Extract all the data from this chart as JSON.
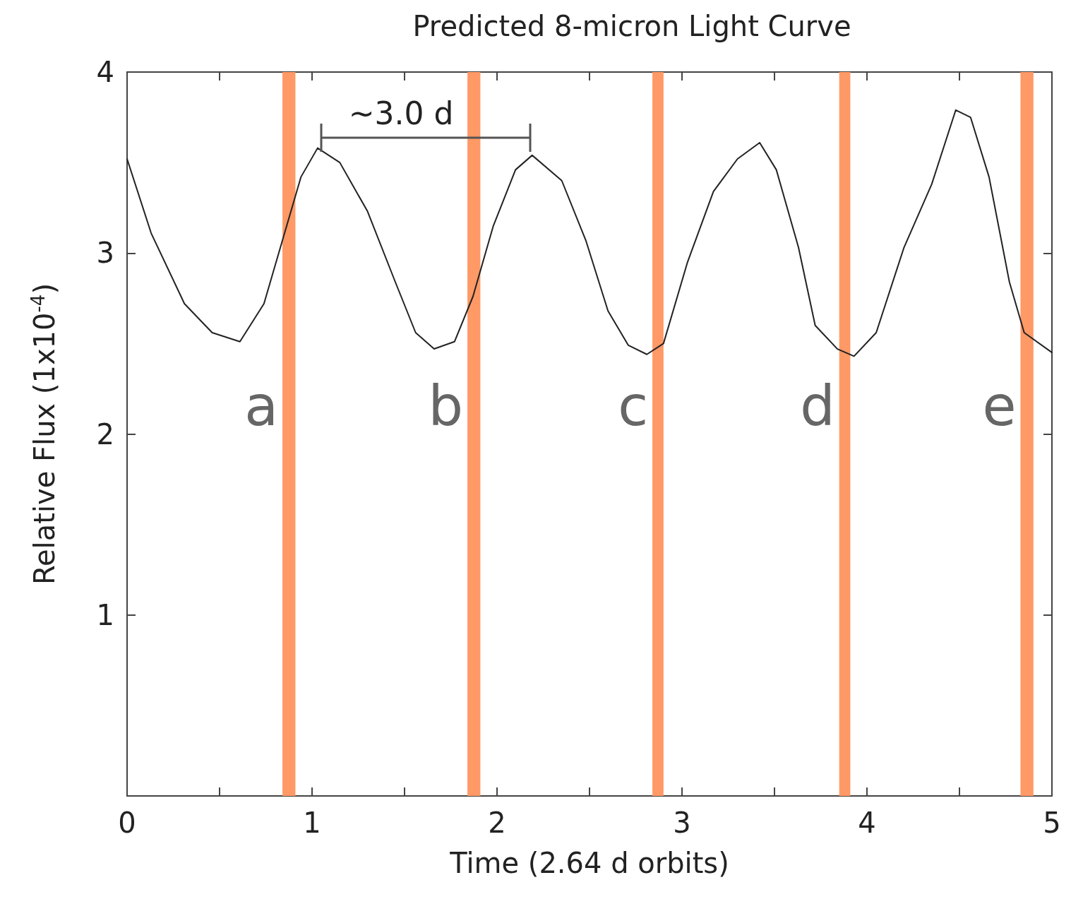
{
  "chart_data": {
    "type": "line",
    "title": "Predicted 8-micron Light Curve",
    "xlabel": "Time (2.64 d orbits)",
    "ylabel": "Relative Flux (1x10$^{-4}$)",
    "x": [
      0,
      0.13,
      0.31,
      0.46,
      0.61,
      0.74,
      0.84,
      0.94,
      1.03,
      1.15,
      1.3,
      1.45,
      1.56,
      1.66,
      1.77,
      1.87,
      1.98,
      2.1,
      2.19,
      2.35,
      2.48,
      2.6,
      2.71,
      2.81,
      2.9,
      3.03,
      3.17,
      3.3,
      3.42,
      3.51,
      3.63,
      3.72,
      3.84,
      3.93,
      4.05,
      4.2,
      4.35,
      4.48,
      4.56,
      4.66,
      4.77,
      4.85,
      5
    ],
    "series": [
      {
        "color": "#222222",
        "values": [
          3.52,
          3.11,
          2.72,
          2.56,
          2.51,
          2.72,
          3.07,
          3.42,
          3.58,
          3.5,
          3.23,
          2.84,
          2.56,
          2.47,
          2.51,
          2.76,
          3.15,
          3.46,
          3.54,
          3.4,
          3.07,
          2.68,
          2.49,
          2.44,
          2.5,
          2.95,
          3.34,
          3.52,
          3.61,
          3.46,
          3.03,
          2.6,
          2.47,
          2.43,
          2.56,
          3.03,
          3.38,
          3.79,
          3.75,
          3.42,
          2.84,
          2.56,
          2.45
        ]
      }
    ],
    "xlim": [
      0,
      5
    ],
    "ylim": [
      0,
      4
    ],
    "xticks": [
      0,
      {
        "value": 0.5,
        "label": null
      },
      1,
      {
        "value": 1.5,
        "label": null
      },
      2,
      {
        "value": 2.5,
        "label": null
      },
      3,
      {
        "value": 3.5,
        "label": null
      },
      4,
      {
        "value": 4.5,
        "label": null
      },
      5
    ],
    "yticks": [
      1,
      2,
      3,
      4
    ],
    "bands": [
      {
        "axis": "x",
        "from": 0.84,
        "to": 0.91,
        "color": "#ff9966",
        "label": "a"
      },
      {
        "axis": "x",
        "from": 1.84,
        "to": 1.91,
        "color": "#ff9966",
        "label": "b"
      },
      {
        "axis": "x",
        "from": 2.84,
        "to": 2.9,
        "color": "#ff9966",
        "label": "c"
      },
      {
        "axis": "x",
        "from": 3.85,
        "to": 3.91,
        "color": "#ff9966",
        "label": "d"
      },
      {
        "axis": "x",
        "from": 4.83,
        "to": 4.9,
        "color": "#ff9966",
        "label": "e"
      }
    ],
    "annotations": [
      "~3.0 d"
    ],
    "grid": false,
    "marker": "none",
    "line_style": "solid"
  }
}
